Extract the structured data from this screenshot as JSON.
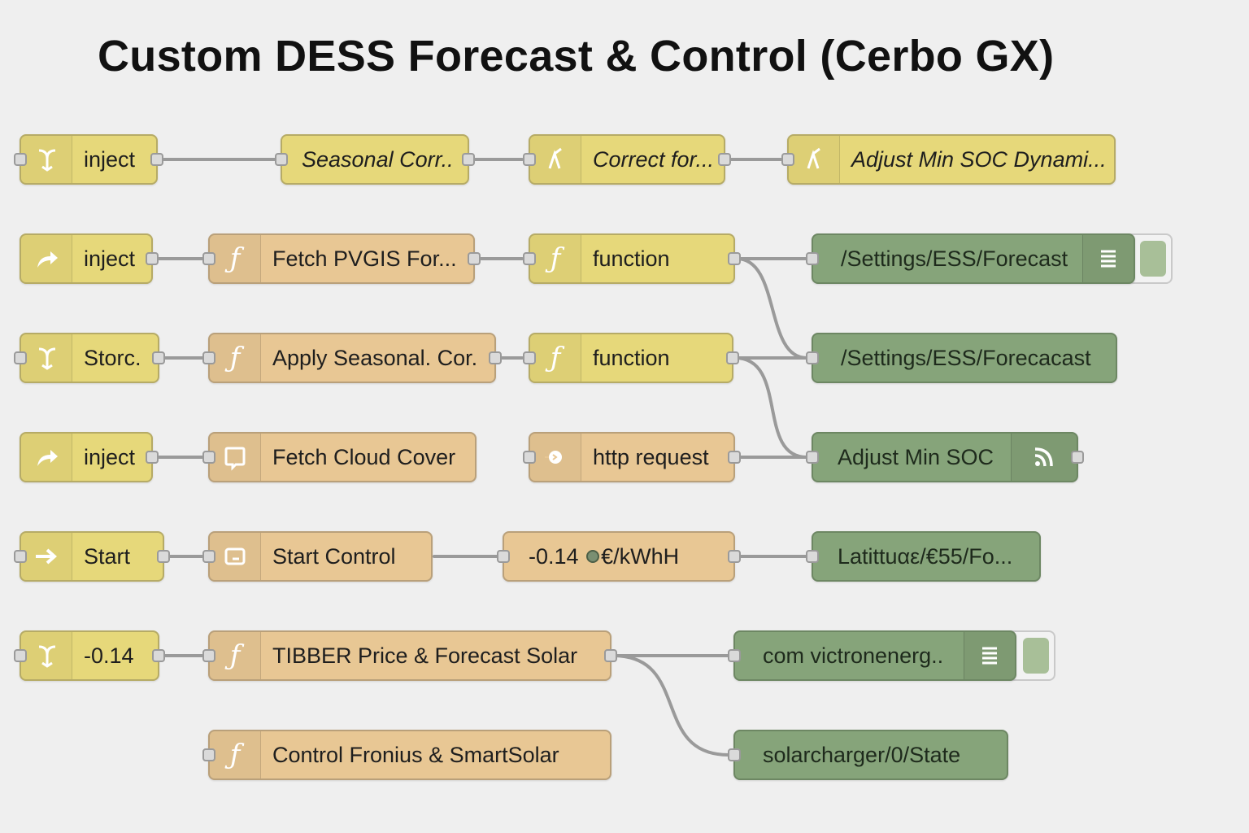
{
  "title": "Custom DESS Forecast & Control (Cerbo GX)",
  "colors": {
    "inject_yellow": "#e6d87a",
    "function_orange": "#e8c794",
    "victron_green": "#86a47a",
    "wire": "#999999",
    "canvas": "#efefef"
  },
  "nodes": {
    "r1_inject": {
      "label": "inject",
      "icon": "split-icon"
    },
    "r1_seasonal": {
      "label": "Seasonal Corr.."
    },
    "r1_correct": {
      "label": "Correct for...",
      "icon": "switch-icon"
    },
    "r1_adjust": {
      "label": "Adjust Min SOC Dynami...",
      "icon": "switch-icon"
    },
    "r2_inject": {
      "label": "inject",
      "icon": "arrow-icon"
    },
    "r2_fetch": {
      "label": "Fetch PVGIS For...",
      "icon": "function-icon"
    },
    "r2_function": {
      "label": "function",
      "icon": "function-icon"
    },
    "r2_settings": {
      "label": "/Settings/ESS/Forecast",
      "icon": "list-icon"
    },
    "r3_storc": {
      "label": "Storc.",
      "icon": "split-icon"
    },
    "r3_apply": {
      "label": "Apply Seasonal. Cor.",
      "icon": "function-icon"
    },
    "r3_function": {
      "label": "function",
      "icon": "function-icon"
    },
    "r3_settings": {
      "label": "/Settings/ESS/Forecacast"
    },
    "r4_inject": {
      "label": "inject",
      "icon": "arrow-icon"
    },
    "r4_cloud": {
      "label": "Fetch Cloud Cover",
      "icon": "template-icon"
    },
    "r4_http": {
      "label": "http request",
      "icon": "globe-icon"
    },
    "r4_adjust": {
      "label": "Adjust Min SOC",
      "icon": "feed-icon"
    },
    "r5_start": {
      "label": "Start",
      "icon": "arrow-right-icon"
    },
    "r5_control": {
      "label": "Start Control",
      "icon": "template-icon"
    },
    "r5_price_value": {
      "label": "-0.14"
    },
    "r5_price_unit": {
      "label": "€/kWhH"
    },
    "r5_lat": {
      "label": "Latittuαε/€55/Fo..."
    },
    "r6_value": {
      "label": "-0.14",
      "icon": "split-icon"
    },
    "r6_tibber": {
      "label": "TIBBER Price & Forecast Solar",
      "icon": "function-icon"
    },
    "r6_victron": {
      "label": "com victronenerg..",
      "icon": "list-icon"
    },
    "r7_control": {
      "label": "Control Fronius &  SmartSolar",
      "icon": "function-icon"
    },
    "r7_solar": {
      "label": "solarcharger/0/State"
    }
  }
}
